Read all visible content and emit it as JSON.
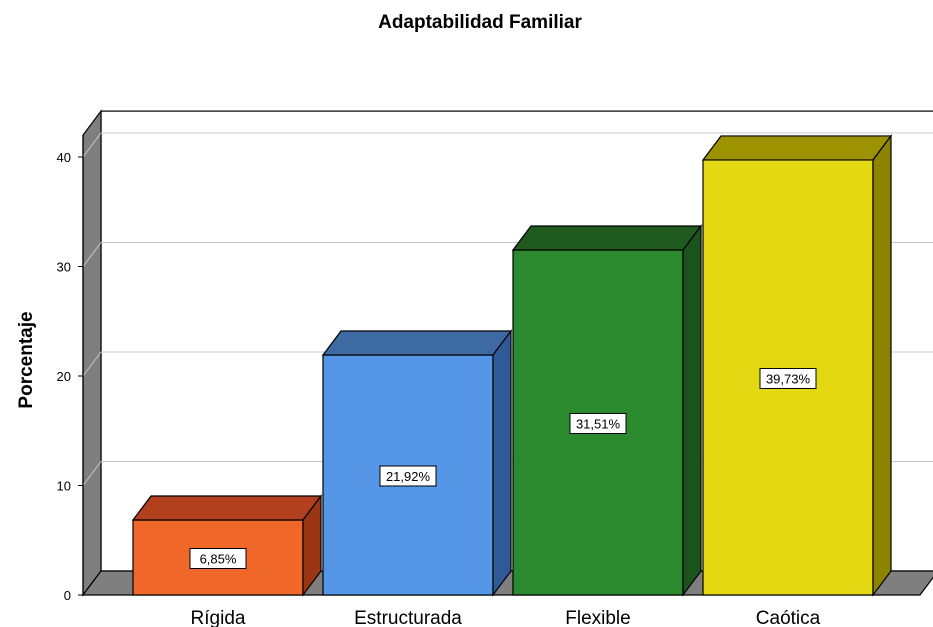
{
  "chart_data": {
    "type": "bar",
    "title": "Adaptabilidad Familiar",
    "xlabel": "",
    "ylabel": "Porcentaje",
    "categories": [
      "Rígida",
      "Estructurada",
      "Flexible",
      "Caótica"
    ],
    "values": [
      6.85,
      21.92,
      31.51,
      39.73
    ],
    "data_labels": [
      "6,85%",
      "21,92%",
      "31,51%",
      "39,73%"
    ],
    "yticks": [
      "0",
      "10",
      "20",
      "30",
      "40"
    ],
    "ylim": [
      0,
      42
    ],
    "grid": true,
    "style": "3d",
    "colors": {
      "front": [
        "#f0672a",
        "#5696e6",
        "#2a8a2d",
        "#e4d813"
      ],
      "top": [
        "#b2401f",
        "#3d6aa3",
        "#1f5a1f",
        "#9d9200"
      ],
      "side": [
        "#9b3614",
        "#2f5a97",
        "#1c521c",
        "#8c8300"
      ]
    }
  }
}
